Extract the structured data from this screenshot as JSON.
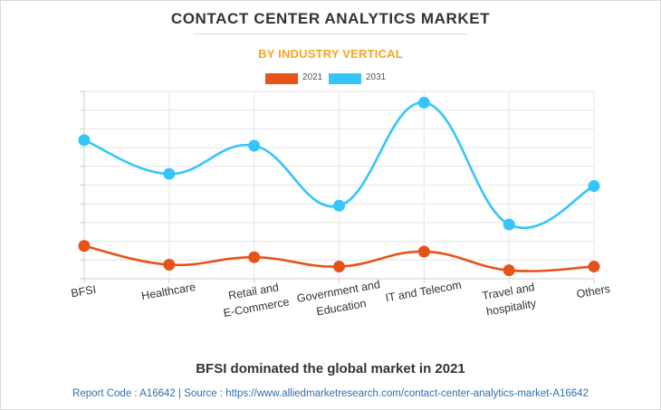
{
  "header": {
    "title": "CONTACT CENTER ANALYTICS MARKET",
    "subtitle": "BY INDUSTRY VERTICAL"
  },
  "footer": {
    "headline": "BFSI dominated the global market in 2021",
    "source": "Report Code : A16642  |  Source : https://www.alliedmarketresearch.com/contact-center-analytics-market-A16642"
  },
  "chart_data": {
    "type": "line",
    "title": "CONTACT CENTER ANALYTICS MARKET",
    "subtitle": "BY INDUSTRY VERTICAL",
    "xlabel": "",
    "ylabel": "",
    "categories": [
      [
        "BFSI"
      ],
      [
        "Healthcare"
      ],
      [
        "Retail and",
        "E-Commerce"
      ],
      [
        "Government and",
        "Education"
      ],
      [
        "IT and Telecom"
      ],
      [
        "Travel and",
        "hospitality"
      ],
      [
        "Others"
      ]
    ],
    "series": [
      {
        "name": "2021",
        "color": "#e5531a",
        "values": [
          1.75,
          0.75,
          1.15,
          0.65,
          1.45,
          0.45,
          0.65
        ]
      },
      {
        "name": "2031",
        "color": "#35c5fb",
        "values": [
          7.4,
          5.6,
          7.1,
          3.9,
          9.4,
          2.9,
          4.95
        ]
      }
    ],
    "ylim": [
      0,
      10
    ],
    "y_ticks_shown": false,
    "grid": true,
    "smooth": true,
    "legend_position": "top-center"
  }
}
